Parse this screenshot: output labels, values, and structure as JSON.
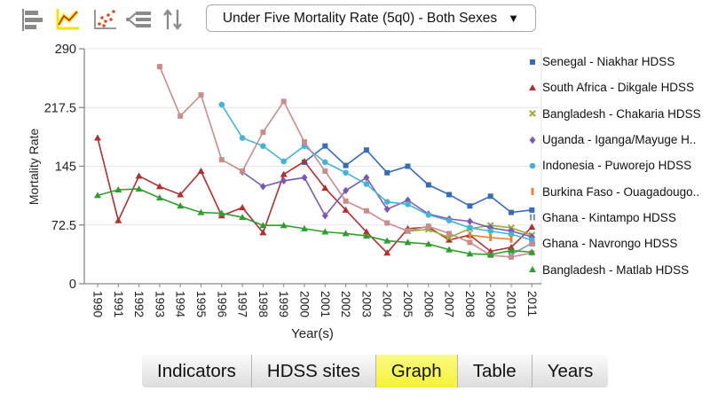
{
  "toolbar": {
    "icons": [
      {
        "name": "bar-chart",
        "selected": false
      },
      {
        "name": "line-chart",
        "selected": true
      },
      {
        "name": "scatter-chart",
        "selected": false
      },
      {
        "name": "legend-list",
        "selected": false
      },
      {
        "name": "sort",
        "selected": false
      }
    ],
    "indicator_dropdown": {
      "value": "Under Five Mortality Rate (5q0) - Both Sexes",
      "arrow": "▼"
    }
  },
  "chart_data": {
    "type": "line",
    "title": "",
    "xlabel": "Year(s)",
    "ylabel": "Mortality Rate",
    "x": [
      1990,
      1991,
      1992,
      1993,
      1994,
      1995,
      1996,
      1997,
      1998,
      1999,
      2000,
      2001,
      2002,
      2003,
      2004,
      2005,
      2006,
      2007,
      2008,
      2009,
      2010,
      2011
    ],
    "ylim": [
      0,
      290
    ],
    "yticks": [
      0,
      72.5,
      145,
      217.5,
      290
    ],
    "ytick_labels": [
      "0",
      "72.5",
      "145",
      "217.5",
      "290"
    ],
    "grid": true,
    "legend_position": "right",
    "series": [
      {
        "name": "Senegal - Niakhar HDSS",
        "color": "#3a6bb5",
        "marker": "square",
        "start_year": 2000,
        "values": [
          150,
          170,
          146,
          165,
          137,
          145,
          122,
          110,
          96,
          108,
          88,
          91
        ]
      },
      {
        "name": "South Africa - Dikgale HDSS",
        "color": "#b03030",
        "marker": "triangle",
        "start_year": 1990,
        "values": [
          180,
          78,
          133,
          120,
          110,
          139,
          84,
          94,
          63,
          135,
          151,
          118,
          91,
          64,
          38,
          68,
          70,
          54,
          60,
          40,
          45,
          70
        ]
      },
      {
        "name": "Bangladesh - Chakaria HDSS",
        "color": "#96ad3c",
        "marker": "x",
        "start_year": 2005,
        "values": [
          65,
          67,
          57,
          68,
          72,
          69,
          60
        ]
      },
      {
        "name": "Uganda - Iganga/Mayuge H..",
        "color": "#7a5ab5",
        "marker": "diamond",
        "start_year": 1997,
        "values": [
          138,
          120,
          127,
          131,
          84,
          115,
          131,
          92,
          103,
          86,
          80,
          77,
          69,
          65,
          58
        ]
      },
      {
        "name": "Indonesia - Puworejo HDSS",
        "color": "#44b4d5",
        "marker": "circle",
        "start_year": 1996,
        "values": [
          221,
          180,
          170,
          151,
          170,
          150,
          137,
          123,
          101,
          98,
          85,
          78,
          69,
          65,
          61,
          54
        ]
      },
      {
        "name": "Burkina Faso - Ouagadougo..",
        "color": "#e0843a",
        "marker": "vbar",
        "start_year": 2008,
        "values": [
          60,
          57,
          55
        ]
      },
      {
        "name": "Ghana - Kintampo HDSS",
        "color": "#8292d8",
        "marker": "dvbar",
        "start_year": 2010,
        "values": [
          36,
          50
        ]
      },
      {
        "name": "Ghana - Navrongo HDSS",
        "color": "#c98c8c",
        "marker": "square",
        "start_year": 1993,
        "values": [
          268,
          207,
          233,
          153,
          139,
          187,
          225,
          175,
          139,
          102,
          90,
          75,
          65,
          71,
          62,
          51,
          35,
          33,
          38
        ]
      },
      {
        "name": "Bangladesh - Matlab HDSS",
        "color": "#2f9e2f",
        "marker": "triangle",
        "start_year": 1990,
        "values": [
          109,
          116,
          117,
          106,
          96,
          88,
          87,
          82,
          72,
          72,
          68,
          64,
          62,
          59,
          53,
          51,
          49,
          42,
          37,
          36,
          41,
          39
        ]
      }
    ]
  },
  "tabs": [
    {
      "label": "Indicators",
      "active": false
    },
    {
      "label": "HDSS sites",
      "active": false
    },
    {
      "label": "Graph",
      "active": true
    },
    {
      "label": "Table",
      "active": false
    },
    {
      "label": "Years",
      "active": false
    }
  ],
  "colors": {
    "axis": "#888888",
    "grid": "#e6e6e6",
    "tick_text": "#222222",
    "active_tab": "#f5f338",
    "icon_gray": "#8a8a8a",
    "icon_yellow": "#f0e400",
    "icon_red": "#cc3f1e"
  }
}
